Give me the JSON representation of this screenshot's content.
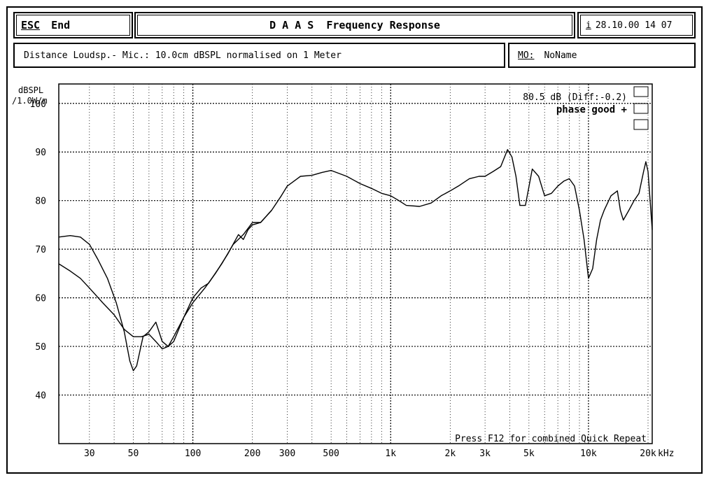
{
  "header": {
    "esc_label": "ESC",
    "end_label": "End",
    "title": "D A A S  Frequency Response",
    "info_icon_label": "i",
    "datetime": "28.10.00 14 07",
    "distance_text": "Distance Loudsp.- Mic.: 10.0cm dBSPL normalised on 1 Meter",
    "mo_label": "MO:",
    "mo_value": "NoName"
  },
  "chart_data": {
    "type": "line",
    "title": "",
    "ylabel_line1": "dBSPL",
    "ylabel_line2": "/1.0W/m",
    "xunit": "kHz",
    "xscale": "log",
    "xlim": [
      21,
      21000
    ],
    "ylim": [
      30,
      104
    ],
    "grid": true,
    "yticks": [
      40,
      50,
      60,
      70,
      80,
      90,
      100
    ],
    "xticks": [
      {
        "value": 30,
        "label": "30"
      },
      {
        "value": 50,
        "label": "50"
      },
      {
        "value": 100,
        "label": "100"
      },
      {
        "value": 200,
        "label": "200"
      },
      {
        "value": 300,
        "label": "300"
      },
      {
        "value": 500,
        "label": "500"
      },
      {
        "value": 1000,
        "label": "1k"
      },
      {
        "value": 2000,
        "label": "2k"
      },
      {
        "value": 3000,
        "label": "3k"
      },
      {
        "value": 5000,
        "label": "5k"
      },
      {
        "value": 10000,
        "label": "10k"
      },
      {
        "value": 20000,
        "label": "20k"
      }
    ],
    "annotation_level": "80.5 dB (Diff:-0.2)",
    "annotation_phase": "phase good +",
    "footer_note": "Press F12 for combined Quick Repeat",
    "series": [
      {
        "x": [
          21,
          24,
          27,
          30,
          33,
          37,
          41,
          45,
          48,
          50,
          52,
          56,
          60,
          65,
          70,
          75,
          80,
          90,
          100,
          115,
          130,
          150,
          170,
          180,
          190,
          200,
          220,
          250,
          280,
          300,
          350,
          400,
          450,
          500,
          600,
          700,
          800,
          900,
          1000,
          1100,
          1200,
          1400,
          1600,
          1800,
          2000,
          2200,
          2500,
          2800,
          3000,
          3300,
          3600,
          3900,
          4100,
          4300,
          4500,
          4800,
          5200,
          5600,
          6000,
          6500,
          7000,
          7500,
          8000,
          8500,
          9000,
          9500,
          10000,
          10500,
          11000,
          11500,
          12000,
          13000,
          14000,
          14500,
          15000,
          16000,
          17000,
          18000,
          19000,
          19500,
          20000,
          21000
        ],
        "y": [
          72.5,
          72.8,
          72.5,
          71,
          68,
          64,
          59,
          53,
          47,
          45,
          46,
          52,
          53,
          55,
          51,
          50,
          51,
          56,
          59,
          62,
          65,
          69,
          73,
          72,
          74,
          75,
          75.5,
          78,
          81,
          83,
          85,
          85.2,
          85.8,
          86.2,
          85,
          83.5,
          82.5,
          81.5,
          81,
          80,
          79,
          78.8,
          79.5,
          81,
          82,
          83,
          84.5,
          85,
          85,
          86,
          87,
          90.5,
          89,
          85,
          79,
          79,
          86.5,
          85,
          81,
          81.5,
          83,
          84,
          84.5,
          83,
          78,
          72,
          64,
          66,
          72,
          76,
          78,
          81,
          82,
          78,
          76,
          78,
          80,
          81.5,
          86,
          88,
          86,
          74
        ]
      },
      {
        "x": [
          21,
          24,
          27,
          30,
          35,
          40,
          45,
          50,
          55,
          60,
          65,
          70,
          75,
          80,
          90,
          100,
          110,
          120,
          140,
          160,
          180,
          200,
          220,
          250
        ],
        "y": [
          67,
          65.5,
          64,
          62,
          59,
          56.5,
          53.5,
          52,
          52,
          52.5,
          51,
          49.5,
          50,
          52,
          56,
          60,
          62,
          63,
          67,
          71,
          73,
          75.5,
          75.5,
          78
        ]
      }
    ]
  }
}
